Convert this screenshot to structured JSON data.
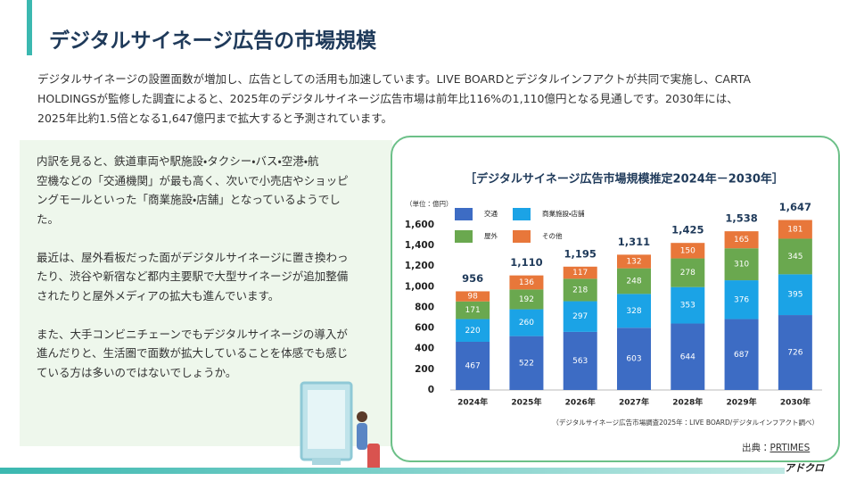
{
  "header": {
    "title": "デジタルサイネージ広告の市場規模"
  },
  "intro": [
    "デジタルサイネージの設置面数が増加し、広告としての活用も加速しています。LIVE BOARDとデジタルインフアクトが共同で実施し、CARTA",
    "HOLDINGSが監修した調査によると、2025年のデジタルサイネージ広告市場は前年比116%の1,110億円となる見通しです。2030年には、",
    "2025年比約1.5倍となる1,647億円まで拡大すると予測されています。"
  ],
  "panel": [
    [
      "内訳を見ると、鉄道車両や駅施設・タクシー・バス・空港・航",
      "空機などの「交通機関」が最も高く、次いで小売店やショッピ",
      "ングモールといった「商業施設・店舗」となっているようでし",
      "た。"
    ],
    [
      "最近は、屋外看板だった面がデジタルサイネージに置き換わっ",
      "たり、渋谷や新宿など都内主要駅で大型サイネージが追加整備",
      "されたりと屋外メディアの拡大も進んでいます。"
    ],
    [
      "また、大手コンビニチェーンでもデジタルサイネージの導入が",
      "進んだりと、生活圏で面数が拡大していることを体感でも感じ",
      "ている方は多いのではないでしょうか。"
    ]
  ],
  "chart_data": {
    "type": "stacked_bar",
    "title": "［デジタルサイネージ広告市場規模推定2024年－2030年］",
    "unit": "（単位：億円）",
    "categories": [
      "2024年",
      "2025年",
      "2026年",
      "2027年",
      "2028年",
      "2029年",
      "2030年"
    ],
    "series": [
      {
        "name": "交通",
        "color": "#3d6cc4",
        "values": [
          467,
          522,
          563,
          603,
          644,
          687,
          726
        ]
      },
      {
        "name": "商業施設・店舗",
        "color": "#1ba3e6",
        "values": [
          220,
          260,
          297,
          328,
          353,
          376,
          395
        ]
      },
      {
        "name": "屋外",
        "color": "#6aa84f",
        "values": [
          171,
          192,
          218,
          248,
          278,
          310,
          345
        ]
      },
      {
        "name": "その他",
        "color": "#e8773a",
        "values": [
          98,
          136,
          117,
          132,
          150,
          165,
          181
        ]
      }
    ],
    "totals": [
      956,
      1110,
      1195,
      1311,
      1425,
      1538,
      1647
    ],
    "total_labels": [
      "956",
      "1,110",
      "1,195",
      "1,311",
      "1,425",
      "1,538",
      "1,647"
    ],
    "ylim": [
      0,
      1700
    ],
    "yticks": [
      0,
      200,
      400,
      600,
      800,
      {
        "value": 1000,
        "label": "1,000"
      },
      {
        "value": 1200,
        "label": "1,200"
      },
      {
        "value": 1400,
        "label": "1,400"
      },
      {
        "value": 1600,
        "label": "1,600"
      }
    ],
    "note": "（デジタルサイネージ広告市場調査2025年：LIVE BOARD/デジタルインフアクト調べ）"
  },
  "source": {
    "label": "出典：",
    "link": "PRTIMES"
  },
  "logo": "アドクロ"
}
